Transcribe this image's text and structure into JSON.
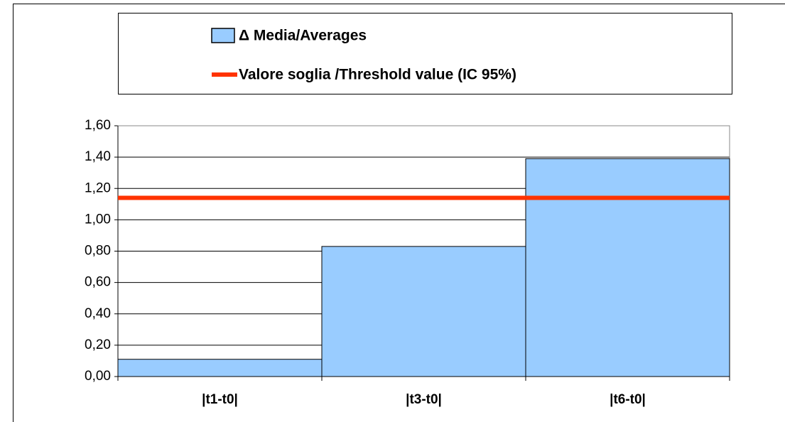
{
  "chart_data": {
    "type": "bar",
    "categories": [
      "|t1-t0|",
      "|t3-t0|",
      "|t6-t0|"
    ],
    "series": [
      {
        "name": "Δ Media/Averages",
        "color": "#99ccff",
        "values": [
          0.11,
          0.83,
          1.39
        ]
      }
    ],
    "threshold": {
      "name": "Valore soglia /Threshold value (IC 95%)",
      "color": "#ff3300",
      "value": 1.14
    },
    "ylim": [
      0,
      1.6
    ],
    "yticks": [
      {
        "value": 0,
        "label": "0,00"
      },
      {
        "value": 0.2,
        "label": "0,20"
      },
      {
        "value": 0.4,
        "label": "0,40"
      },
      {
        "value": 0.6,
        "label": "0,60"
      },
      {
        "value": 0.8,
        "label": "0,80"
      },
      {
        "value": 1.0,
        "label": "1,00"
      },
      {
        "value": 1.2,
        "label": "1,20"
      },
      {
        "value": 1.4,
        "label": "1,40"
      },
      {
        "value": 1.6,
        "label": "1,60"
      }
    ],
    "grid": true,
    "legend": "top"
  }
}
